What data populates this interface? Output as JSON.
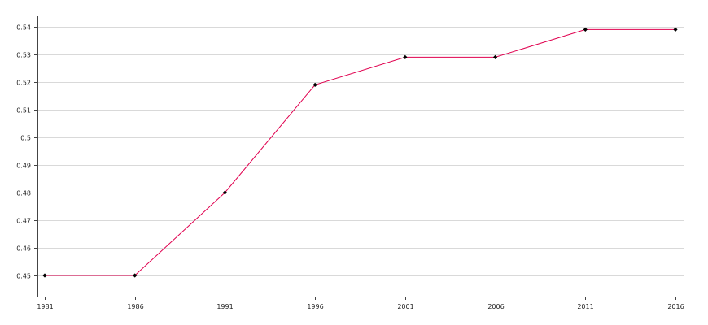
{
  "chart_data": {
    "type": "line",
    "title": "",
    "xlabel": "",
    "ylabel": "",
    "x": [
      1981,
      1986,
      1991,
      1996,
      2001,
      2006,
      2011,
      2016
    ],
    "series": [
      {
        "values": [
          0.45,
          0.45,
          0.48,
          0.519,
          0.529,
          0.529,
          0.539,
          0.539
        ]
      }
    ],
    "xticks": [
      "1981",
      "1986",
      "1991",
      "1996",
      "2001",
      "2006",
      "2011",
      "2016"
    ],
    "yticks": [
      "0.45",
      "0.46",
      "0.47",
      "0.48",
      "0.49",
      "0.5",
      "0.51",
      "0.52",
      "0.53",
      "0.54"
    ],
    "ylim": [
      0.45,
      0.54
    ],
    "grid": true,
    "legend": "none",
    "colors": {
      "line": "#e0004f",
      "marker": "#000000",
      "grid": "#d9d9d9",
      "axis": "#444444"
    }
  }
}
